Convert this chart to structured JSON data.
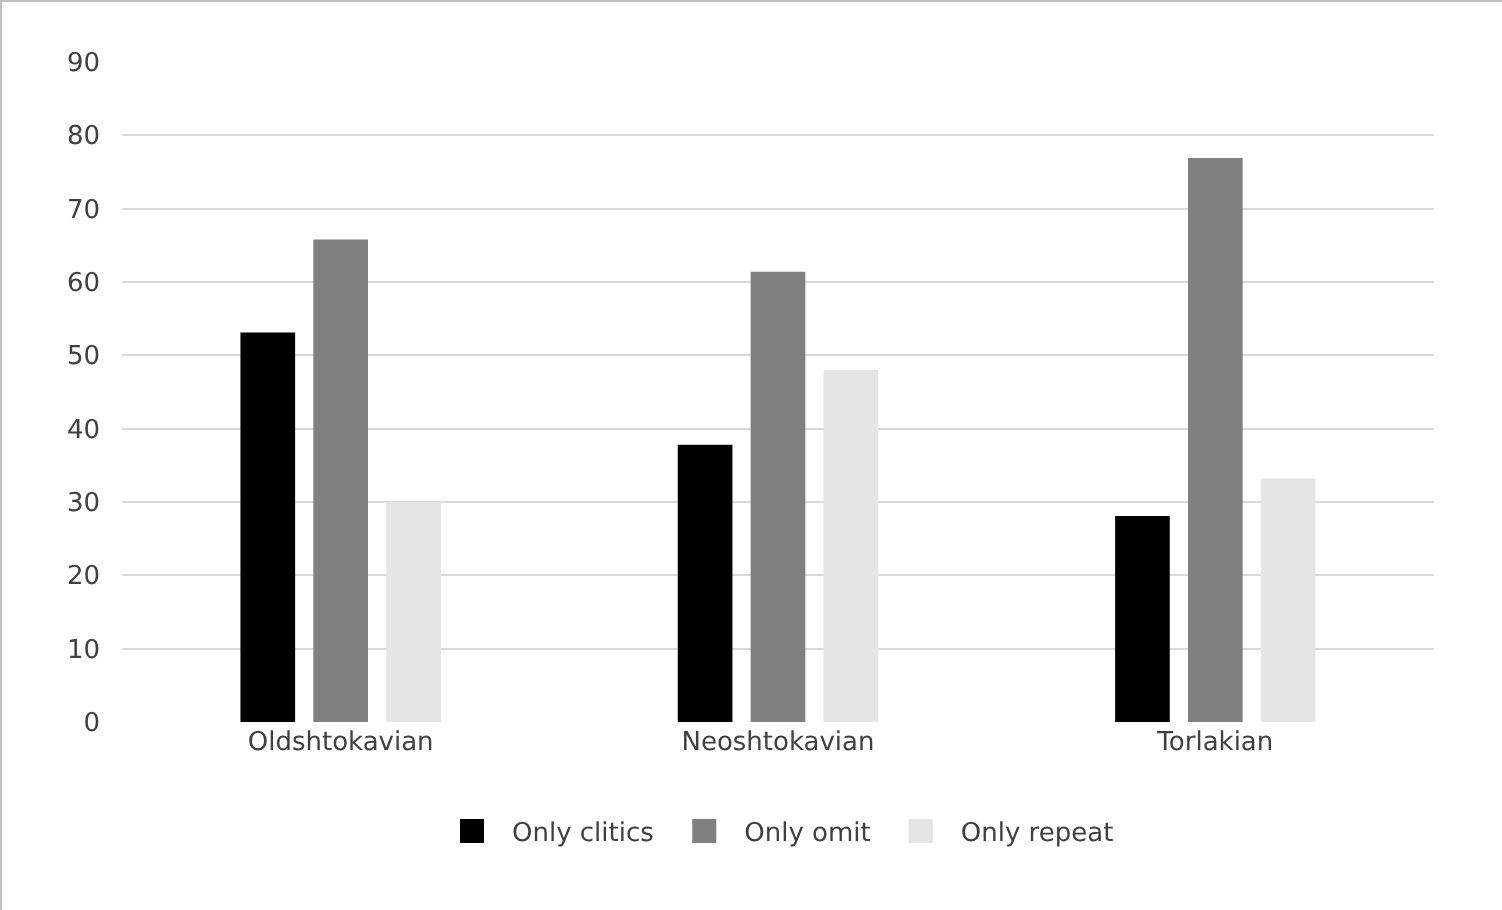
{
  "chart_data": {
    "type": "bar",
    "categories": [
      "Oldshtokavian",
      "Neoshtokavian",
      "Torlakian"
    ],
    "series": [
      {
        "name": "Only clitics",
        "color": "#000000",
        "values": [
          53.1,
          37.8,
          28.1
        ]
      },
      {
        "name": "Only omit",
        "color": "#808080",
        "values": [
          65.8,
          61.4,
          76.9
        ]
      },
      {
        "name": "Only repeat",
        "color": "#e5e5e5",
        "values": [
          30.0,
          48.0,
          33.2
        ]
      }
    ],
    "ylim": [
      0,
      90
    ],
    "yticks": [
      0,
      10,
      20,
      30,
      40,
      50,
      60,
      70,
      80,
      90
    ],
    "grid": "y",
    "legend": "bottom"
  }
}
